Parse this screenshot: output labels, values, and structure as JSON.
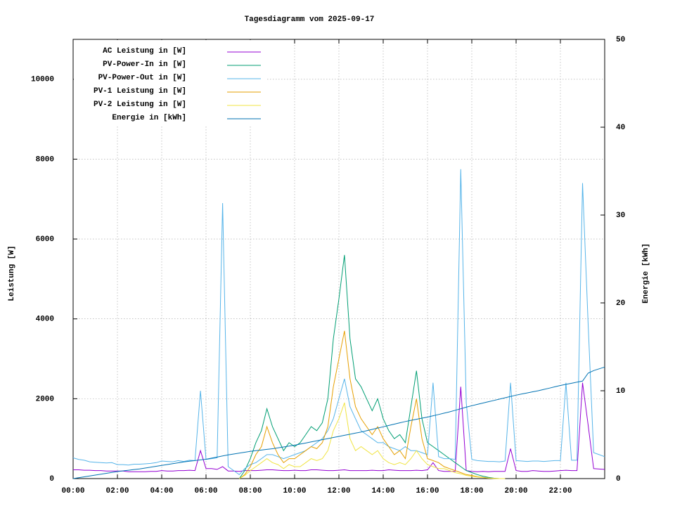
{
  "chart_data": {
    "type": "line",
    "title": "Tagesdiagramm vom 2025-09-17",
    "ylabel": "Leistung [W]",
    "y2label": "Energie [kWh]",
    "grid": true,
    "legend": "upper left",
    "xlim": [
      0,
      24
    ],
    "xticks": [
      {
        "value": 0,
        "label": "00:00"
      },
      {
        "value": 2,
        "label": "02:00"
      },
      {
        "value": 4,
        "label": "04:00"
      },
      {
        "value": 6,
        "label": "06:00"
      },
      {
        "value": 8,
        "label": "08:00"
      },
      {
        "value": 10,
        "label": "10:00"
      },
      {
        "value": 12,
        "label": "12:00"
      },
      {
        "value": 14,
        "label": "14:00"
      },
      {
        "value": 16,
        "label": "16:00"
      },
      {
        "value": 18,
        "label": "18:00"
      },
      {
        "value": 20,
        "label": "20:00"
      },
      {
        "value": 22,
        "label": "22:00"
      }
    ],
    "ylim": [
      0,
      11000
    ],
    "yticks": [
      0,
      2000,
      4000,
      6000,
      8000,
      10000
    ],
    "y2lim": [
      0,
      50
    ],
    "y2ticks": [
      0,
      10,
      20,
      30,
      40,
      50
    ],
    "x": [
      0,
      0.25,
      0.5,
      0.75,
      1,
      1.25,
      1.5,
      1.75,
      2,
      2.25,
      2.5,
      2.75,
      3,
      3.25,
      3.5,
      3.75,
      4,
      4.25,
      4.5,
      4.75,
      5,
      5.25,
      5.5,
      5.75,
      6,
      6.25,
      6.5,
      6.75,
      7,
      7.25,
      7.5,
      7.75,
      8,
      8.25,
      8.5,
      8.75,
      9,
      9.25,
      9.5,
      9.75,
      10,
      10.25,
      10.5,
      10.75,
      11,
      11.25,
      11.5,
      11.75,
      12,
      12.25,
      12.5,
      12.75,
      13,
      13.25,
      13.5,
      13.75,
      14,
      14.25,
      14.5,
      14.75,
      15,
      15.25,
      15.5,
      15.75,
      16,
      16.25,
      16.5,
      16.75,
      17,
      17.25,
      17.5,
      17.75,
      18,
      18.25,
      18.5,
      18.75,
      19,
      19.25,
      19.5,
      19.75,
      20,
      20.25,
      20.5,
      20.75,
      21,
      21.25,
      21.5,
      21.75,
      22,
      22.25,
      22.5,
      22.75,
      23,
      23.25,
      23.5,
      23.75,
      24
    ],
    "series": [
      {
        "name": "AC Leistung in [W]",
        "color": "#9400d3",
        "values": [
          220,
          220,
          210,
          210,
          200,
          200,
          190,
          190,
          190,
          190,
          170,
          170,
          170,
          170,
          180,
          180,
          200,
          190,
          190,
          200,
          200,
          210,
          200,
          700,
          250,
          250,
          230,
          300,
          190,
          190,
          180,
          200,
          200,
          200,
          210,
          220,
          220,
          210,
          200,
          200,
          210,
          200,
          200,
          220,
          220,
          210,
          200,
          200,
          210,
          220,
          200,
          200,
          200,
          200,
          210,
          200,
          200,
          220,
          210,
          200,
          200,
          200,
          210,
          200,
          220,
          400,
          200,
          180,
          180,
          180,
          2300,
          200,
          180,
          170,
          180,
          170,
          180,
          180,
          180,
          750,
          200,
          180,
          180,
          200,
          190,
          180,
          180,
          190,
          200,
          210,
          200,
          200,
          2400,
          1350,
          250,
          240,
          230
        ]
      },
      {
        "name": "PV-Power-In in [W]",
        "color": "#009e73",
        "values": [
          null,
          null,
          null,
          null,
          null,
          null,
          null,
          null,
          null,
          null,
          null,
          null,
          null,
          null,
          null,
          null,
          null,
          null,
          null,
          null,
          null,
          null,
          null,
          null,
          null,
          null,
          null,
          null,
          null,
          null,
          0,
          200,
          500,
          900,
          1200,
          1750,
          1300,
          1000,
          700,
          900,
          800,
          900,
          1100,
          1300,
          1200,
          1400,
          2000,
          3500,
          4500,
          5600,
          3500,
          2500,
          2300,
          2000,
          1700,
          2000,
          1500,
          1200,
          1000,
          1100,
          900,
          1800,
          2700,
          1500,
          900,
          800,
          700,
          600,
          500,
          400,
          300,
          200,
          150,
          100,
          60,
          30,
          10,
          0,
          0,
          null,
          null,
          null,
          null,
          null,
          null,
          null,
          null,
          null,
          null,
          null,
          null,
          null,
          null,
          null,
          null,
          null,
          null
        ]
      },
      {
        "name": "PV-Power-Out in [W]",
        "color": "#56b4e9",
        "values": [
          520,
          480,
          460,
          420,
          410,
          400,
          390,
          400,
          350,
          350,
          340,
          360,
          360,
          370,
          380,
          400,
          440,
          430,
          420,
          450,
          430,
          460,
          450,
          2200,
          480,
          500,
          520,
          6900,
          300,
          200,
          100,
          250,
          350,
          400,
          500,
          600,
          600,
          550,
          500,
          550,
          600,
          650,
          700,
          800,
          900,
          1000,
          1200,
          1500,
          2000,
          2500,
          1800,
          1500,
          1200,
          1100,
          1000,
          900,
          900,
          800,
          750,
          700,
          800,
          700,
          700,
          650,
          600,
          2400,
          550,
          500,
          500,
          480,
          7750,
          1900,
          480,
          450,
          440,
          430,
          430,
          420,
          440,
          2400,
          450,
          440,
          430,
          440,
          440,
          430,
          440,
          450,
          450,
          2400,
          460,
          460,
          7400,
          3900,
          650,
          600,
          550
        ]
      },
      {
        "name": "PV-1 Leistung in [W]",
        "color": "#e69f00",
        "values": [
          null,
          null,
          null,
          null,
          null,
          null,
          null,
          null,
          null,
          null,
          null,
          null,
          null,
          null,
          null,
          null,
          null,
          null,
          null,
          null,
          null,
          null,
          null,
          null,
          null,
          null,
          null,
          null,
          null,
          null,
          0,
          100,
          300,
          600,
          800,
          1300,
          900,
          600,
          400,
          500,
          500,
          600,
          700,
          800,
          750,
          900,
          1300,
          2300,
          3000,
          3700,
          2500,
          1800,
          1500,
          1300,
          1100,
          1300,
          1000,
          800,
          600,
          700,
          500,
          1300,
          2000,
          1000,
          500,
          450,
          400,
          300,
          250,
          200,
          150,
          100,
          80,
          50,
          30,
          15,
          5,
          0,
          0,
          null,
          null,
          null,
          null,
          null,
          null,
          null,
          null,
          null,
          null,
          null,
          null,
          null,
          null,
          null,
          null,
          null,
          null
        ]
      },
      {
        "name": "PV-2 Leistung in [W]",
        "color": "#f0e442",
        "values": [
          null,
          null,
          null,
          null,
          null,
          null,
          null,
          null,
          null,
          null,
          null,
          null,
          null,
          null,
          null,
          null,
          null,
          null,
          null,
          null,
          null,
          null,
          null,
          null,
          null,
          null,
          null,
          null,
          null,
          null,
          0,
          80,
          200,
          300,
          400,
          500,
          400,
          350,
          250,
          350,
          300,
          300,
          400,
          500,
          450,
          500,
          700,
          1200,
          1500,
          1900,
          1000,
          700,
          800,
          700,
          600,
          700,
          500,
          400,
          350,
          400,
          350,
          500,
          700,
          500,
          350,
          300,
          250,
          250,
          200,
          150,
          120,
          80,
          60,
          40,
          25,
          10,
          5,
          0,
          0,
          null,
          null,
          null,
          null,
          null,
          null,
          null,
          null,
          null,
          null,
          null,
          null,
          null,
          null,
          null,
          null,
          null,
          null
        ]
      },
      {
        "name": "Energie in [kWh]",
        "color": "#0072b2",
        "axis": "y2",
        "values": [
          0,
          0.1,
          0.2,
          0.3,
          0.4,
          0.5,
          0.6,
          0.7,
          0.8,
          0.88,
          0.95,
          1.03,
          1.1,
          1.2,
          1.3,
          1.4,
          1.5,
          1.6,
          1.7,
          1.8,
          1.9,
          1.98,
          2.05,
          2.13,
          2.2,
          2.33,
          2.45,
          2.58,
          2.7,
          2.8,
          2.9,
          3.0,
          3.1,
          3.18,
          3.25,
          3.33,
          3.4,
          3.5,
          3.6,
          3.7,
          3.8,
          3.93,
          4.05,
          4.18,
          4.3,
          4.43,
          4.55,
          4.68,
          4.8,
          4.93,
          5.05,
          5.18,
          5.3,
          5.45,
          5.6,
          5.75,
          5.9,
          6.05,
          6.2,
          6.35,
          6.5,
          6.63,
          6.75,
          6.88,
          7.0,
          7.15,
          7.3,
          7.45,
          7.6,
          7.78,
          7.95,
          8.13,
          8.3,
          8.45,
          8.6,
          8.75,
          8.9,
          9.05,
          9.2,
          9.35,
          9.5,
          9.63,
          9.75,
          9.88,
          10.0,
          10.15,
          10.3,
          10.45,
          10.6,
          10.73,
          10.85,
          10.98,
          11.1,
          12.0,
          12.3,
          12.5,
          12.7
        ]
      }
    ]
  }
}
